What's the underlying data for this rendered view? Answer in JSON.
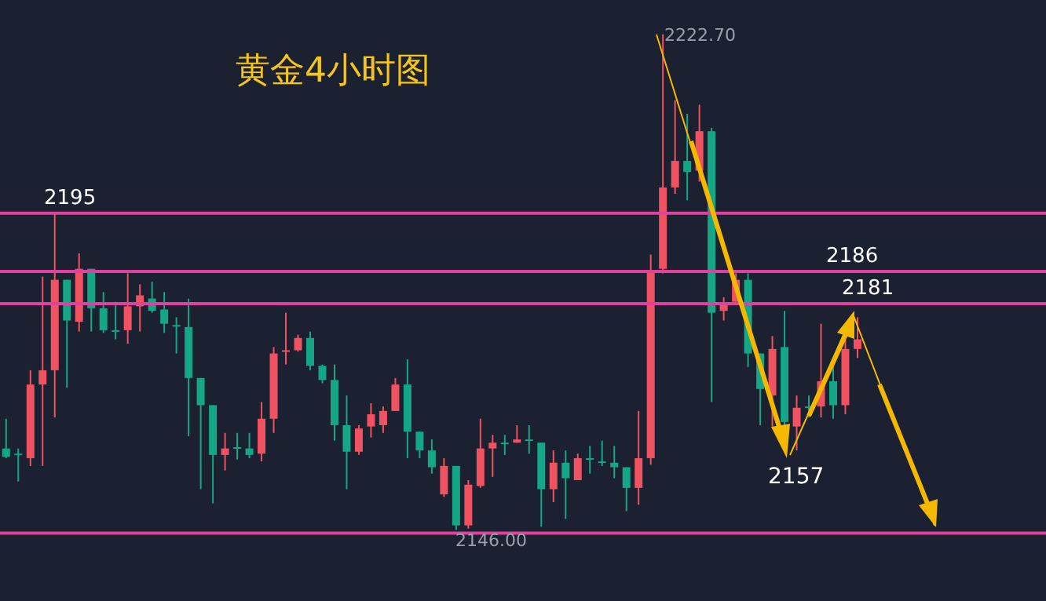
{
  "chart_data": {
    "type": "candlestick",
    "title": "黄金4小时图",
    "categories": [
      null,
      null,
      null,
      null,
      null,
      null,
      null,
      null,
      null,
      null,
      null,
      null,
      null,
      null,
      null,
      null,
      null,
      null,
      null,
      null,
      null,
      null,
      null,
      null,
      null,
      null,
      null,
      null,
      null,
      null,
      null,
      null,
      null,
      null,
      null,
      null,
      null,
      null,
      null,
      null,
      null,
      null,
      null,
      null,
      null,
      null,
      null,
      null,
      null,
      null,
      null,
      null,
      null,
      null,
      null,
      null,
      null,
      null,
      null,
      null,
      null,
      null,
      null,
      null,
      null,
      null,
      null,
      null,
      null,
      null,
      null,
      null,
      null,
      null,
      null,
      null,
      null,
      null,
      null,
      null,
      null,
      null,
      null,
      null,
      null,
      null
    ],
    "ohlc": [
      [
        2158.6,
        2163.2,
        2157.1,
        2157.3
      ],
      [
        2157.8,
        2158.6,
        2153.5,
        2157.8
      ],
      [
        2157.1,
        2170.7,
        2155.9,
        2168.5
      ],
      [
        2168.5,
        2185.2,
        2155.9,
        2170.7
      ],
      [
        2170.7,
        2194.9,
        2163.4,
        2184.7
      ],
      [
        2184.7,
        2184.7,
        2168.0,
        2178.4
      ],
      [
        2178.2,
        2188.8,
        2176.7,
        2186.4
      ],
      [
        2186.4,
        2186.4,
        2176.7,
        2180.3
      ],
      [
        2180.3,
        2182.8,
        2176.5,
        2176.9
      ],
      [
        2176.9,
        2181.3,
        2175.5,
        2176.9
      ],
      [
        2176.9,
        2185.7,
        2174.8,
        2180.6
      ],
      [
        2180.6,
        2184.0,
        2176.7,
        2182.3
      ],
      [
        2181.8,
        2184.4,
        2179.6,
        2179.9
      ],
      [
        2180.1,
        2182.8,
        2176.5,
        2177.9
      ],
      [
        2177.7,
        2178.9,
        2173.3,
        2177.7
      ],
      [
        2177.4,
        2181.8,
        2160.5,
        2169.5
      ],
      [
        2169.5,
        2169.5,
        2152.3,
        2165.3
      ],
      [
        2165.3,
        2165.3,
        2150.1,
        2157.6
      ],
      [
        2157.6,
        2161.0,
        2155.2,
        2158.6
      ],
      [
        2158.8,
        2161.0,
        2156.9,
        2158.8
      ],
      [
        2158.6,
        2161.0,
        2157.1,
        2157.6
      ],
      [
        2157.8,
        2165.8,
        2156.6,
        2163.2
      ],
      [
        2163.2,
        2174.3,
        2161.0,
        2173.3
      ],
      [
        2173.6,
        2179.6,
        2171.6,
        2173.8
      ],
      [
        2173.8,
        2176.2,
        2173.6,
        2175.7
      ],
      [
        2175.7,
        2176.7,
        2170.7,
        2171.4
      ],
      [
        2171.4,
        2171.6,
        2168.7,
        2169.2
      ],
      [
        2169.2,
        2171.6,
        2159.8,
        2162.2
      ],
      [
        2162.2,
        2166.8,
        2152.3,
        2158.1
      ],
      [
        2158.1,
        2162.2,
        2157.6,
        2161.7
      ],
      [
        2162.0,
        2165.6,
        2160.3,
        2163.9
      ],
      [
        2162.2,
        2165.1,
        2161.0,
        2164.4
      ],
      [
        2164.4,
        2169.5,
        2164.4,
        2168.5
      ],
      [
        2168.5,
        2172.4,
        2157.1,
        2161.2
      ],
      [
        2161.2,
        2161.2,
        2157.1,
        2158.3
      ],
      [
        2158.3,
        2160.0,
        2154.7,
        2155.7
      ],
      [
        2151.5,
        2157.1,
        2151.1,
        2155.9
      ],
      [
        2155.9,
        2155.9,
        2146.0,
        2146.7
      ],
      [
        2146.7,
        2153.7,
        2146.2,
        2153.0
      ],
      [
        2152.8,
        2163.2,
        2152.5,
        2158.6
      ],
      [
        2158.6,
        2160.7,
        2154.2,
        2159.5
      ],
      [
        2159.5,
        2160.7,
        2157.6,
        2159.5
      ],
      [
        2159.5,
        2162.2,
        2159.5,
        2160.0
      ],
      [
        2160.0,
        2162.2,
        2157.8,
        2159.8
      ],
      [
        2159.5,
        2159.5,
        2146.5,
        2152.3
      ],
      [
        2152.3,
        2158.3,
        2150.3,
        2156.4
      ],
      [
        2156.4,
        2158.3,
        2147.7,
        2154.0
      ],
      [
        2153.7,
        2157.8,
        2153.7,
        2157.1
      ],
      [
        2157.1,
        2159.0,
        2154.7,
        2157.1
      ],
      [
        2156.6,
        2159.8,
        2155.9,
        2156.6
      ],
      [
        2156.4,
        2159.0,
        2154.0,
        2155.7
      ],
      [
        2155.7,
        2155.7,
        2148.9,
        2152.5
      ],
      [
        2152.5,
        2164.4,
        2149.9,
        2157.1
      ],
      [
        2157.1,
        2188.6,
        2156.1,
        2185.9
      ],
      [
        2186.4,
        2222.7,
        2185.7,
        2199.0
      ],
      [
        2199.0,
        2212.5,
        2198.0,
        2203.1
      ],
      [
        2203.1,
        2210.4,
        2197.0,
        2201.4
      ],
      [
        2201.6,
        2211.8,
        2199.9,
        2207.7
      ],
      [
        2207.7,
        2208.2,
        2165.8,
        2179.6
      ],
      [
        2179.9,
        2182.0,
        2178.4,
        2181.1
      ],
      [
        2181.3,
        2185.7,
        2181.3,
        2184.7
      ],
      [
        2184.7,
        2185.7,
        2171.2,
        2173.3
      ],
      [
        2173.3,
        2173.3,
        2162.2,
        2167.8
      ],
      [
        2166.8,
        2176.0,
        2162.0,
        2174.0
      ],
      [
        2174.3,
        2179.9,
        2162.0,
        2162.7
      ],
      [
        2162.0,
        2166.8,
        2158.3,
        2164.9
      ],
      [
        2165.1,
        2166.8,
        2163.4,
        2165.1
      ],
      [
        2165.1,
        2177.9,
        2163.4,
        2169.0
      ],
      [
        2169.0,
        2171.6,
        2163.2,
        2165.3
      ],
      [
        2165.3,
        2175.5,
        2163.9,
        2174.0
      ],
      [
        2174.0,
        2178.9,
        2172.6,
        2175.5
      ],
      null,
      null,
      null,
      null,
      null,
      null,
      null,
      null,
      null,
      null,
      null,
      null,
      null,
      null,
      null
    ],
    "colors": [
      "#15a587",
      "#15a587",
      "#ef5260",
      "#ef5260",
      "#ef5260",
      "#15a587",
      "#ef5260",
      "#15a587",
      "#15a587",
      "#15a587",
      "#ef5260",
      "#ef5260",
      "#15a587",
      "#15a587",
      "#15a587",
      "#15a587",
      "#15a587",
      "#15a587",
      "#ef5260",
      "#15a587",
      "#15a587",
      "#ef5260",
      "#ef5260",
      "#ef5260",
      "#ef5260",
      "#15a587",
      "#15a587",
      "#15a587",
      "#15a587",
      "#ef5260",
      "#ef5260",
      "#ef5260",
      "#ef5260",
      "#15a587",
      "#15a587",
      "#15a587",
      "#ef5260",
      "#15a587",
      "#ef5260",
      "#ef5260",
      "#ef5260",
      "#15a587",
      "#ef5260",
      "#15a587",
      "#15a587",
      "#ef5260",
      "#15a587",
      "#ef5260",
      "#15a587",
      "#15a587",
      "#15a587",
      "#15a587",
      "#ef5260",
      "#ef5260",
      "#ef5260",
      "#ef5260",
      "#15a587",
      "#ef5260",
      "#15a587",
      "#ef5260",
      "#ef5260",
      "#15a587",
      "#15a587",
      "#ef5260",
      "#15a587",
      "#ef5260",
      "#15a587",
      "#ef5260",
      "#15a587",
      "#ef5260",
      "#ef5260",
      null,
      null,
      null,
      null,
      null,
      null,
      null,
      null,
      null,
      null,
      null,
      null,
      null,
      null,
      null
    ],
    "ylim": [
      2135,
      2228
    ],
    "tick_labels": false,
    "grid": false,
    "ref_lines": [
      {
        "axis": "y",
        "value": 2195,
        "label": "2195",
        "color": "#e040a0"
      },
      {
        "axis": "y",
        "value": 2186,
        "label": "2186",
        "color": "#e040a0"
      },
      {
        "axis": "y",
        "value": 2181,
        "label": "2181",
        "color": "#e040a0"
      },
      {
        "axis": "y",
        "value": 2145.5,
        "label": null,
        "color": "#e040a0"
      }
    ],
    "annotations": [
      "2222.70",
      "2146.00",
      "2157"
    ]
  }
}
